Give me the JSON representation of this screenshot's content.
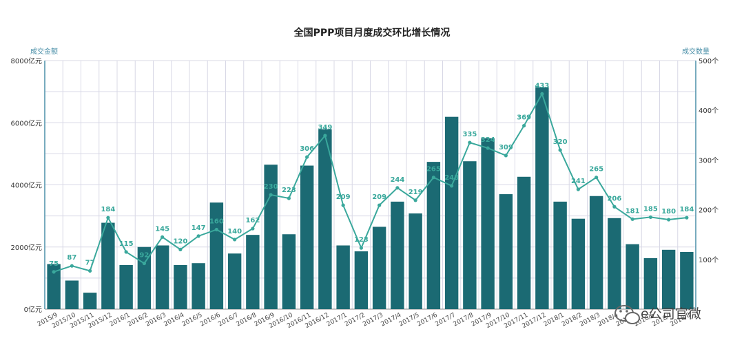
{
  "chart_data": {
    "type": "bar",
    "title": "全国PPP项目月度成交环比增长情况",
    "ylabel_left": "成交金额",
    "ylabel_right": "成交数量",
    "yticks_left": [
      "0亿元",
      "2000亿元",
      "4000亿元",
      "6000亿元",
      "8000亿元"
    ],
    "yticks_right": [
      "100个",
      "200个",
      "300个",
      "400个",
      "500个"
    ],
    "ylim_left": [
      0,
      8000
    ],
    "ylim_right": [
      0,
      500
    ],
    "grid": true,
    "legend": "none",
    "categories": [
      "2015/9",
      "2015/10",
      "2015/11",
      "2015/12",
      "2016/1",
      "2016/2",
      "2016/3",
      "2016/4",
      "2016/5",
      "2016/6",
      "2016/7",
      "2016/8",
      "2016/9",
      "2016/10",
      "2016/11",
      "2016/12",
      "2017/1",
      "2017/2",
      "2017/3",
      "2017/4",
      "2017/5",
      "2017/6",
      "2017/7",
      "2017/8",
      "2017/9",
      "2017/10",
      "2017/11",
      "2017/12",
      "2018/1",
      "2018/2",
      "2018/3",
      "2018/4",
      "2018/5",
      "2018/6",
      "2018/7",
      "2018/8"
    ],
    "series": [
      {
        "type": "bar",
        "axis": "left",
        "color": "#1b6a73",
        "values": [
          1450,
          920,
          530,
          2780,
          1420,
          2000,
          2050,
          1420,
          1480,
          3430,
          1790,
          2390,
          4650,
          2410,
          4620,
          5790,
          2050,
          1860,
          2650,
          3460,
          3080,
          4740,
          6190,
          4760,
          5500,
          3700,
          4260,
          7140,
          3460,
          2910,
          3640,
          2930,
          2090,
          1640,
          1910,
          1840
        ]
      },
      {
        "type": "line",
        "axis": "right",
        "color": "#3aa89c",
        "values": [
          75,
          87,
          77,
          184,
          115,
          92,
          145,
          120,
          147,
          160,
          140,
          162,
          230,
          223,
          306,
          349,
          209,
          123,
          209,
          244,
          219,
          265,
          248,
          335,
          324,
          309,
          369,
          433,
          320,
          241,
          265,
          206,
          181,
          185,
          180,
          184
        ],
        "labels": [
          "75",
          "87",
          "77",
          "184",
          "115",
          "92",
          "145",
          "120",
          "147",
          "160",
          "140",
          "162",
          "230",
          "223",
          "306",
          "349",
          "209",
          "123",
          "209",
          "244",
          "219",
          "265",
          "248",
          "335",
          "324",
          "309",
          "369",
          "433",
          "320",
          "241",
          "265",
          "206",
          "181",
          "185",
          "180",
          "184"
        ]
      }
    ]
  },
  "watermark": {
    "brand": "e公司官微",
    "icon": "wechat-logo"
  },
  "colors": {
    "bar": "#1b6a73",
    "line": "#3aa89c",
    "axis": "#4a8fa8",
    "grid": "#d8d8e6",
    "title": "#222222"
  }
}
